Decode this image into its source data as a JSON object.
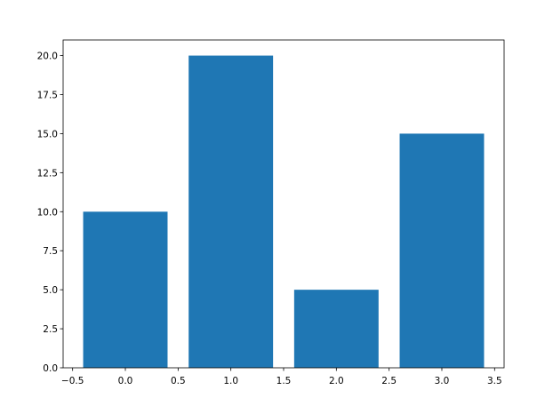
{
  "chart_data": {
    "type": "bar",
    "x": [
      0,
      1,
      2,
      3
    ],
    "values": [
      10,
      20,
      5,
      15
    ],
    "width": 0.8,
    "color": "#1f77b4",
    "xlim": [
      -0.59,
      3.59
    ],
    "ylim": [
      0,
      21
    ],
    "xticks": [
      {
        "value": -0.5,
        "label": "−0.5"
      },
      {
        "value": 0,
        "label": "0.0"
      },
      {
        "value": 0.5,
        "label": "0.5"
      },
      {
        "value": 1,
        "label": "1.0"
      },
      {
        "value": 1.5,
        "label": "1.5"
      },
      {
        "value": 2,
        "label": "2.0"
      },
      {
        "value": 2.5,
        "label": "2.5"
      },
      {
        "value": 3,
        "label": "3.0"
      },
      {
        "value": 3.5,
        "label": "3.5"
      }
    ],
    "yticks": [
      {
        "value": 0,
        "label": "0.0"
      },
      {
        "value": 2.5,
        "label": "2.5"
      },
      {
        "value": 5,
        "label": "5.0"
      },
      {
        "value": 7.5,
        "label": "7.5"
      },
      {
        "value": 10,
        "label": "10.0"
      },
      {
        "value": 12.5,
        "label": "12.5"
      },
      {
        "value": 15,
        "label": "15.0"
      },
      {
        "value": 17.5,
        "label": "17.5"
      },
      {
        "value": 20,
        "label": "20.0"
      }
    ],
    "grid": false
  }
}
